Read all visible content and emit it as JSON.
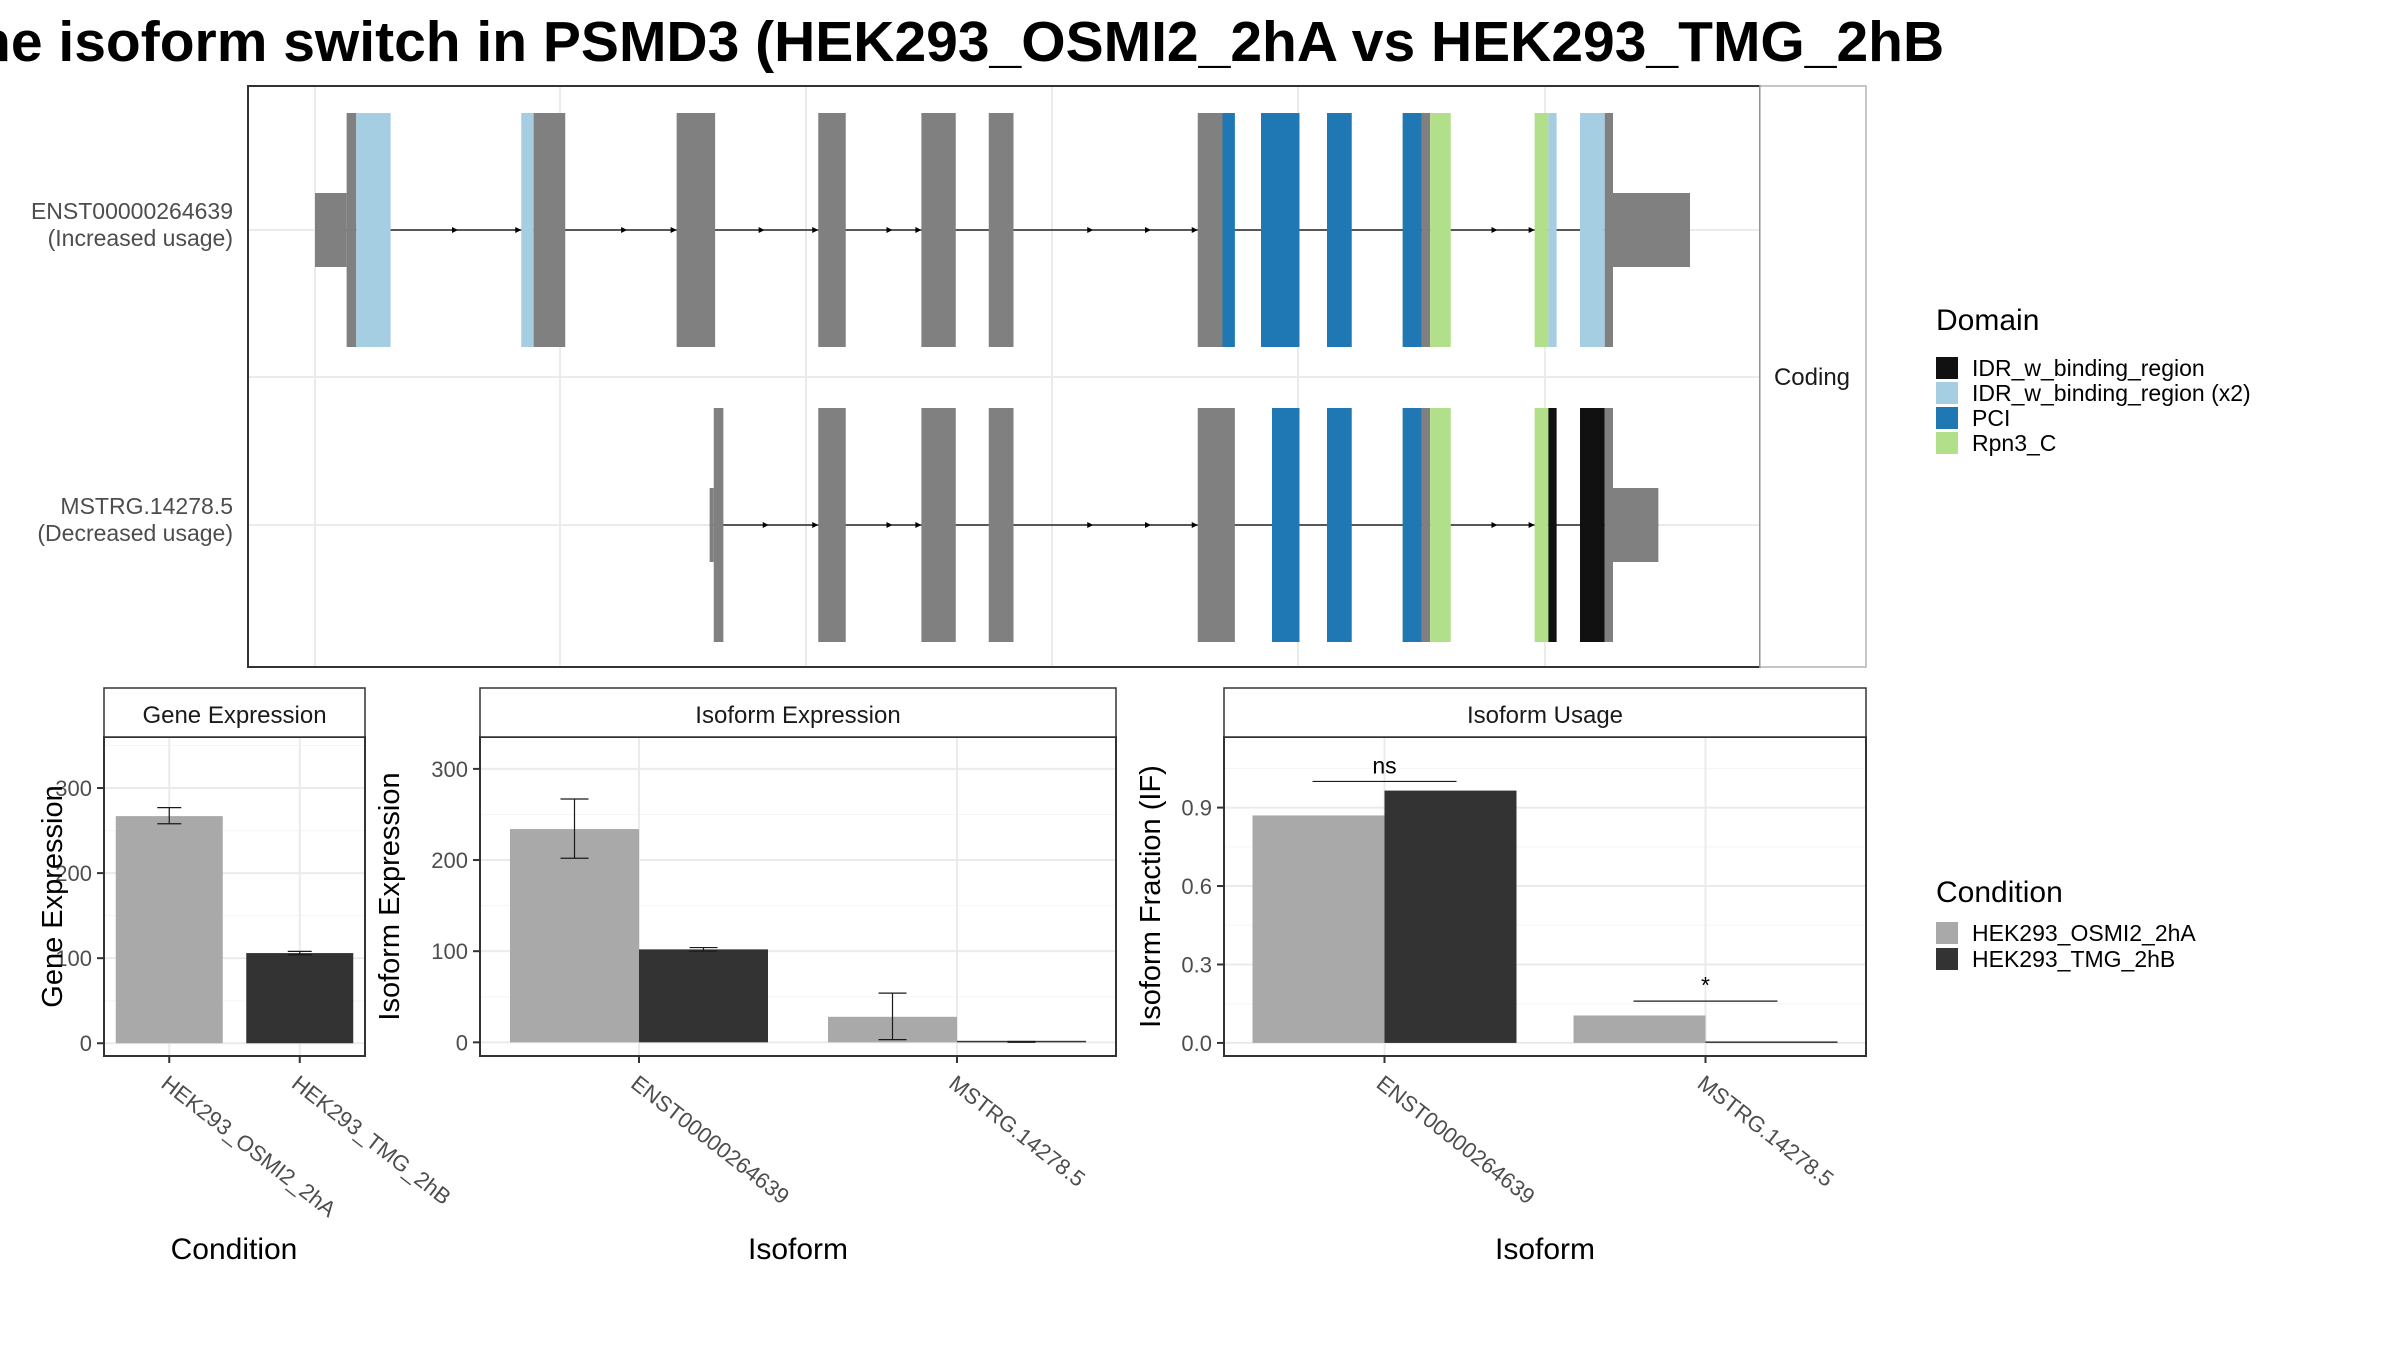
{
  "title": "he isoform switch in PSMD3 (HEK293_OSMI2_2hA vs HEK293_TMG_2hB",
  "colors": {
    "exon": "#808080",
    "IDR_w_binding_region": "#111111",
    "IDR_w_binding_region (x2)": "#a6cee3",
    "PCI": "#1f78b4",
    "Rpn3_C": "#b2df8a",
    "HEK293_OSMI2_2hA": "#a9a9a9",
    "HEK293_TMG_2hB": "#333333"
  },
  "chart_data": [
    {
      "type": "gene_structure",
      "facet_label": "Coding",
      "transcripts": [
        {
          "id": "ENST00000264639",
          "usage": "(Increased usage)",
          "segments": [
            [
              0.0,
              2.3,
              "exon",
              "utr"
            ],
            [
              2.3,
              3.0,
              "exon"
            ],
            [
              3.0,
              5.5,
              "IDR_w_binding_region (x2)"
            ],
            [
              15.0,
              15.9,
              "IDR_w_binding_region (x2)"
            ],
            [
              15.9,
              18.2,
              "exon"
            ],
            [
              26.3,
              29.1,
              "exon"
            ],
            [
              36.6,
              38.6,
              "exon"
            ],
            [
              44.1,
              46.6,
              "exon"
            ],
            [
              49.0,
              50.8,
              "exon"
            ],
            [
              64.2,
              66.0,
              "exon"
            ],
            [
              66.0,
              66.9,
              "PCI"
            ],
            [
              68.8,
              71.6,
              "PCI"
            ],
            [
              73.6,
              75.4,
              "PCI"
            ],
            [
              79.1,
              80.5,
              "PCI"
            ],
            [
              80.5,
              81.1,
              "exon"
            ],
            [
              81.1,
              82.6,
              "Rpn3_C"
            ],
            [
              88.7,
              89.7,
              "Rpn3_C"
            ],
            [
              89.7,
              90.3,
              "IDR_w_binding_region (x2)"
            ],
            [
              92.0,
              93.8,
              "IDR_w_binding_region (x2)"
            ],
            [
              93.8,
              94.4,
              "exon"
            ],
            [
              94.4,
              100.0,
              "exon",
              "utr"
            ]
          ],
          "arrows": [
            10.4,
            15.0,
            22.7,
            26.3,
            32.7,
            36.6,
            42.0,
            44.1,
            56.6,
            60.8,
            64.2,
            86.0,
            88.7
          ]
        },
        {
          "id": "MSTRG.14278.5",
          "usage": "(Decreased usage)",
          "segments": [
            [
              28.7,
              29.0,
              "exon",
              "utr"
            ],
            [
              29.0,
              29.7,
              "exon"
            ],
            [
              36.6,
              38.6,
              "exon"
            ],
            [
              44.1,
              46.6,
              "exon"
            ],
            [
              49.0,
              50.8,
              "exon"
            ],
            [
              64.2,
              66.9,
              "exon"
            ],
            [
              69.6,
              71.6,
              "PCI"
            ],
            [
              73.6,
              75.4,
              "PCI"
            ],
            [
              79.1,
              80.5,
              "PCI"
            ],
            [
              80.5,
              81.1,
              "exon"
            ],
            [
              81.1,
              82.6,
              "Rpn3_C"
            ],
            [
              88.7,
              89.7,
              "Rpn3_C"
            ],
            [
              89.7,
              90.3,
              "IDR_w_binding_region"
            ],
            [
              92.0,
              93.8,
              "IDR_w_binding_region"
            ],
            [
              93.8,
              94.4,
              "exon"
            ],
            [
              94.4,
              97.7,
              "exon",
              "utr"
            ]
          ],
          "arrows": [
            33.0,
            36.6,
            42.0,
            44.1,
            56.6,
            60.8,
            64.2,
            86.0,
            88.7
          ]
        }
      ]
    },
    {
      "type": "bar",
      "facet_label": "Gene Expression",
      "xlabel": "Condition",
      "ylabel": "Gene Expression",
      "categories": [
        "HEK293_OSMI2_2hA",
        "HEK293_TMG_2hB"
      ],
      "values": [
        267,
        106
      ],
      "errors": [
        [
          258,
          277
        ],
        [
          104,
          108
        ]
      ],
      "ylim": [
        -15,
        360
      ],
      "yticks": [
        0,
        100,
        200,
        300
      ]
    },
    {
      "type": "bar",
      "facet_label": "Isoform Expression",
      "xlabel": "Isoform",
      "ylabel": "Isoform Expression",
      "categories": [
        "ENST00000264639",
        "MSTRG.14278.5"
      ],
      "series": [
        {
          "name": "HEK293_OSMI2_2hA",
          "values": [
            234,
            28
          ],
          "errors": [
            [
              202,
              267
            ],
            [
              3,
              54
            ]
          ]
        },
        {
          "name": "HEK293_TMG_2hB",
          "values": [
            102,
            0.3
          ],
          "errors": [
            [
              100,
              104
            ],
            [
              0,
              1
            ]
          ]
        }
      ],
      "ylim": [
        -15,
        335
      ],
      "yticks": [
        0,
        100,
        200,
        300
      ]
    },
    {
      "type": "bar",
      "facet_label": "Isoform Usage",
      "xlabel": "Isoform",
      "ylabel": "Isoform Fraction (IF)",
      "categories": [
        "ENST00000264639",
        "MSTRG.14278.5"
      ],
      "series": [
        {
          "name": "HEK293_OSMI2_2hA",
          "values": [
            0.87,
            0.105
          ]
        },
        {
          "name": "HEK293_TMG_2hB",
          "values": [
            0.965,
            0.0
          ]
        }
      ],
      "annotations": [
        {
          "category": "ENST00000264639",
          "label": "ns",
          "y": 1.0
        },
        {
          "category": "MSTRG.14278.5",
          "label": "*",
          "y": 0.16
        }
      ],
      "ylim": [
        -0.05,
        1.17
      ],
      "yticks": [
        "0.0",
        "0.3",
        "0.6",
        "0.9"
      ]
    }
  ],
  "legends": {
    "domain": {
      "title": "Domain",
      "entries": [
        "IDR_w_binding_region",
        "IDR_w_binding_region (x2)",
        "PCI",
        "Rpn3_C"
      ]
    },
    "condition": {
      "title": "Condition",
      "entries": [
        "HEK293_OSMI2_2hA",
        "HEK293_TMG_2hB"
      ]
    }
  }
}
